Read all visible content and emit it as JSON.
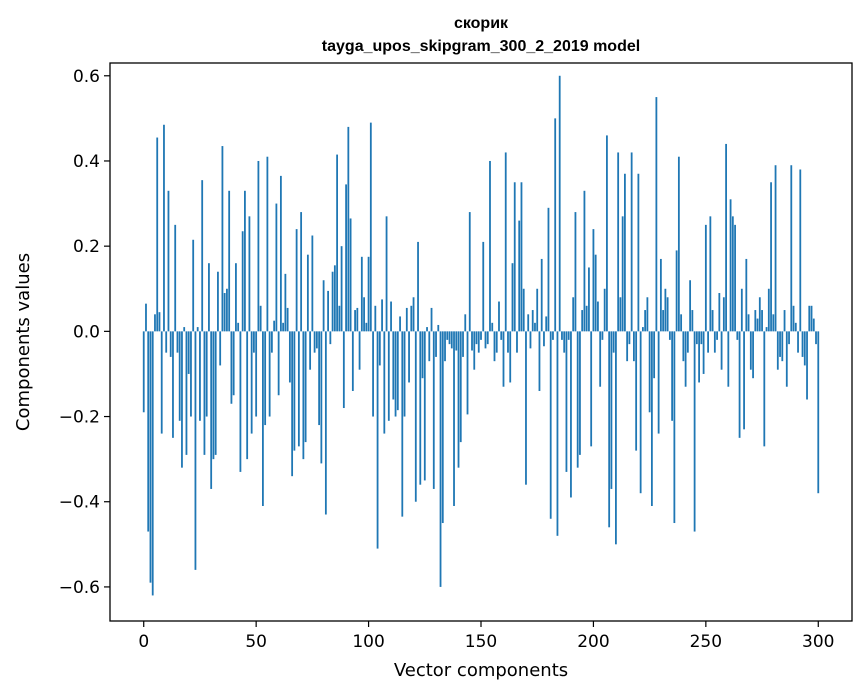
{
  "chart_data": {
    "type": "bar",
    "title": "скорик",
    "subtitle": "tayga_upos_skipgram_300_2_2019 model",
    "xlabel": "Vector components",
    "ylabel": "Components values",
    "xlim": [
      -15,
      315
    ],
    "ylim": [
      -0.68,
      0.63
    ],
    "xticks": [
      0,
      50,
      100,
      150,
      200,
      250,
      300
    ],
    "xtick_labels": [
      "0",
      "50",
      "100",
      "150",
      "200",
      "250",
      "300"
    ],
    "yticks": [
      -0.6,
      -0.4,
      -0.2,
      0.0,
      0.2,
      0.4,
      0.6
    ],
    "ytick_labels": [
      "−0.6",
      "−0.4",
      "−0.2",
      "0.0",
      "0.2",
      "0.4",
      "0.6"
    ],
    "grid": false,
    "bar_color": "#1f77b4",
    "values": [
      -0.19,
      0.065,
      -0.47,
      -0.59,
      -0.62,
      0.04,
      0.455,
      0.045,
      -0.24,
      0.485,
      -0.05,
      0.33,
      -0.06,
      -0.25,
      0.25,
      -0.05,
      -0.21,
      -0.32,
      0.01,
      -0.29,
      -0.1,
      -0.2,
      0.215,
      -0.56,
      0.01,
      -0.21,
      0.355,
      -0.29,
      -0.2,
      0.16,
      -0.37,
      -0.3,
      -0.29,
      0.14,
      -0.08,
      0.435,
      0.09,
      0.1,
      0.33,
      -0.17,
      -0.15,
      0.16,
      0.02,
      -0.33,
      0.235,
      0.33,
      -0.3,
      0.27,
      -0.24,
      -0.05,
      -0.2,
      0.4,
      0.06,
      -0.41,
      -0.22,
      0.41,
      -0.2,
      -0.05,
      0.025,
      0.3,
      -0.15,
      0.365,
      0.02,
      0.135,
      0.055,
      -0.12,
      -0.34,
      -0.28,
      0.24,
      -0.27,
      0.28,
      -0.3,
      -0.26,
      0.18,
      -0.09,
      0.225,
      -0.05,
      -0.04,
      -0.22,
      -0.31,
      0.12,
      -0.43,
      0.095,
      -0.03,
      0.14,
      0.155,
      0.415,
      0.06,
      0.2,
      -0.18,
      0.345,
      0.48,
      0.265,
      -0.14,
      0.05,
      0.055,
      -0.09,
      0.175,
      0.08,
      0.02,
      0.175,
      0.49,
      -0.2,
      0.06,
      -0.51,
      -0.08,
      0.075,
      -0.24,
      0.27,
      -0.21,
      0.07,
      -0.16,
      -0.2,
      -0.185,
      0.035,
      -0.435,
      -0.2,
      0.055,
      -0.12,
      0.06,
      0.08,
      -0.4,
      0.21,
      -0.36,
      -0.11,
      -0.35,
      0.01,
      -0.07,
      0.055,
      -0.37,
      -0.06,
      0.015,
      -0.6,
      -0.45,
      -0.07,
      -0.02,
      -0.03,
      -0.04,
      -0.41,
      -0.045,
      -0.32,
      -0.26,
      -0.06,
      0.04,
      -0.195,
      0.28,
      -0.045,
      -0.09,
      -0.03,
      -0.05,
      -0.02,
      0.21,
      -0.04,
      -0.03,
      0.4,
      0.02,
      -0.07,
      -0.05,
      0.07,
      -0.02,
      -0.13,
      0.42,
      -0.05,
      -0.12,
      0.16,
      0.35,
      -0.05,
      0.26,
      0.35,
      0.1,
      -0.36,
      0.04,
      -0.04,
      0.05,
      0.02,
      0.1,
      -0.14,
      0.17,
      -0.035,
      0.035,
      0.29,
      -0.44,
      -0.02,
      0.5,
      -0.48,
      0.6,
      -0.02,
      -0.05,
      -0.33,
      -0.02,
      -0.39,
      0.08,
      0.28,
      -0.32,
      -0.29,
      0.05,
      0.33,
      0.06,
      0.15,
      -0.27,
      0.24,
      0.18,
      0.07,
      -0.13,
      -0.02,
      0.1,
      0.46,
      -0.46,
      -0.37,
      -0.05,
      -0.5,
      0.42,
      0.08,
      0.27,
      0.37,
      -0.07,
      -0.03,
      0.42,
      -0.07,
      -0.28,
      0.37,
      -0.38,
      0.01,
      0.05,
      0.08,
      -0.19,
      -0.41,
      -0.11,
      0.55,
      -0.24,
      0.17,
      0.05,
      0.1,
      0.08,
      -0.02,
      -0.21,
      -0.45,
      0.19,
      0.41,
      0.04,
      -0.07,
      -0.13,
      -0.05,
      0.12,
      0.05,
      -0.47,
      -0.03,
      -0.12,
      -0.03,
      -0.1,
      0.25,
      -0.05,
      0.27,
      0.05,
      -0.05,
      -0.02,
      0.09,
      -0.09,
      0.08,
      0.44,
      -0.13,
      0.31,
      0.27,
      0.25,
      -0.02,
      -0.25,
      0.1,
      -0.23,
      0.17,
      0.04,
      -0.09,
      -0.11,
      0.05,
      0.03,
      0.08,
      0.05,
      -0.27,
      0.01,
      0.1,
      0.35,
      0.04,
      0.39,
      -0.09,
      -0.06,
      -0.07,
      0.05,
      -0.13,
      -0.03,
      0.39,
      0.06,
      0.02,
      -0.05,
      0.38,
      -0.06,
      -0.08,
      -0.16,
      0.06,
      0.06,
      0.03,
      -0.03,
      -0.38
    ]
  }
}
